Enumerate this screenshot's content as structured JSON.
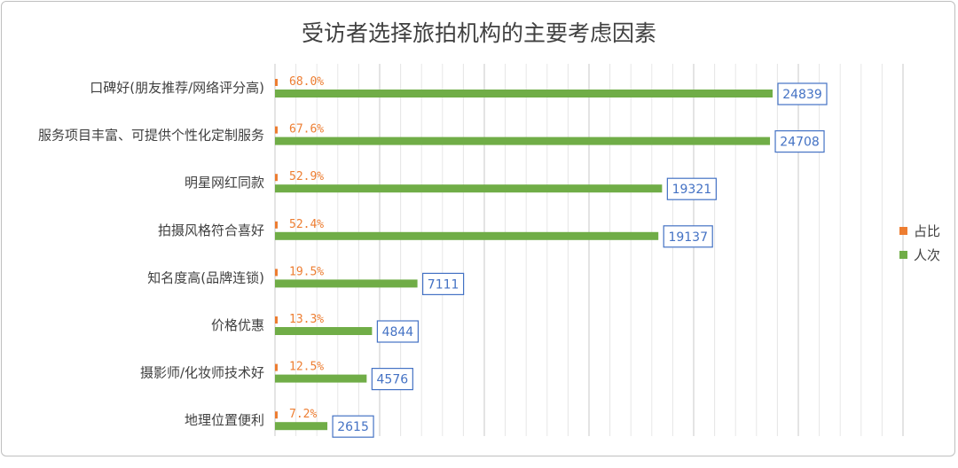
{
  "chart_data": {
    "type": "bar",
    "orientation": "horizontal",
    "title": "受访者选择旅拍机构的主要考虑因素",
    "categories": [
      "口碑好(朋友推荐/网络评分高)",
      "服务项目丰富、可提供个性化定制服务",
      "明星网红同款",
      "拍摄风格符合喜好",
      "知名度高(品牌连锁)",
      "价格优惠",
      "摄影师/化妆师技术好",
      "地理位置便利"
    ],
    "series": [
      {
        "name": "占比",
        "color": "#ed7d31",
        "values": [
          0.68,
          0.676,
          0.529,
          0.524,
          0.195,
          0.133,
          0.125,
          0.072
        ],
        "labels": [
          "68.0%",
          "67.6%",
          "52.9%",
          "52.4%",
          "19.5%",
          "13.3%",
          "12.5%",
          "7.2%"
        ]
      },
      {
        "name": "人次",
        "color": "#70ad47",
        "values": [
          24839,
          24708,
          19321,
          19137,
          7111,
          4844,
          4576,
          2615
        ],
        "labels": [
          "24839",
          "24708",
          "19321",
          "19137",
          "7111",
          "4844",
          "4576",
          "2615"
        ]
      }
    ],
    "xlim": [
      0,
      30000
    ],
    "grid": true,
    "legend_position": "right"
  }
}
